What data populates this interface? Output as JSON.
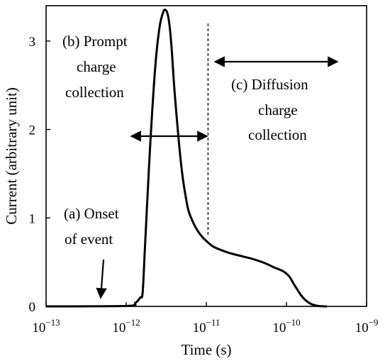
{
  "chart_data": {
    "type": "line",
    "title": "",
    "xlabel": "Time (s)",
    "ylabel": "Current (arbitrary unit)",
    "x_scale": "log",
    "xlim": [
      1e-13,
      1e-09
    ],
    "ylim": [
      0,
      3.4
    ],
    "grid": false,
    "x_ticks": [
      {
        "value": 1e-13,
        "base": "10",
        "exp": "−13"
      },
      {
        "value": 1e-12,
        "base": "10",
        "exp": "−12"
      },
      {
        "value": 1e-11,
        "base": "10",
        "exp": "−11"
      },
      {
        "value": 1e-10,
        "base": "10",
        "exp": "−10"
      },
      {
        "value": 1e-09,
        "base": "10",
        "exp": "−9"
      }
    ],
    "y_ticks": [
      {
        "value": 0,
        "label": "0"
      },
      {
        "value": 1,
        "label": "1"
      },
      {
        "value": 2,
        "label": "2"
      },
      {
        "value": 3,
        "label": "3"
      }
    ],
    "series": [
      {
        "color": "#000000",
        "x": [
          1e-13,
          1e-12,
          1.3e-12,
          1.5e-12,
          1.6e-12,
          1.7e-12,
          1.8e-12,
          2e-12,
          2.3e-12,
          2.6e-12,
          2.9e-12,
          3.1e-12,
          3.3e-12,
          3.5e-12,
          3.7e-12,
          4e-12,
          4.5e-12,
          5e-12,
          5.5e-12,
          6e-12,
          7e-12,
          8e-12,
          9e-12,
          1e-11,
          1.2e-11,
          1.5e-11,
          2e-11,
          3e-11,
          4e-11,
          5e-11,
          6e-11,
          7e-11,
          8e-11,
          9e-11,
          1e-10,
          1.1e-10,
          1.3e-10,
          1.6e-10,
          2e-10,
          2.5e-10,
          3.2e-10
        ],
        "y": [
          0,
          0.005,
          0.04,
          0.1,
          0.15,
          0.6,
          1.05,
          1.85,
          2.7,
          3.15,
          3.33,
          3.35,
          3.3,
          3.15,
          2.9,
          2.45,
          1.9,
          1.5,
          1.25,
          1.08,
          0.93,
          0.84,
          0.78,
          0.74,
          0.68,
          0.64,
          0.6,
          0.56,
          0.53,
          0.5,
          0.47,
          0.44,
          0.42,
          0.4,
          0.37,
          0.33,
          0.22,
          0.1,
          0.03,
          0.005,
          0
        ]
      }
    ],
    "annotations": [
      {
        "id": "onset",
        "lines": [
          "(a) Onset",
          "of event"
        ]
      },
      {
        "id": "prompt",
        "lines": [
          "(b) Prompt",
          "charge",
          "collection"
        ]
      },
      {
        "id": "diffusion",
        "lines": [
          "(c) Diffusion",
          "charge",
          "collection"
        ]
      }
    ],
    "dashed_marker_x": 1.05e-11
  }
}
